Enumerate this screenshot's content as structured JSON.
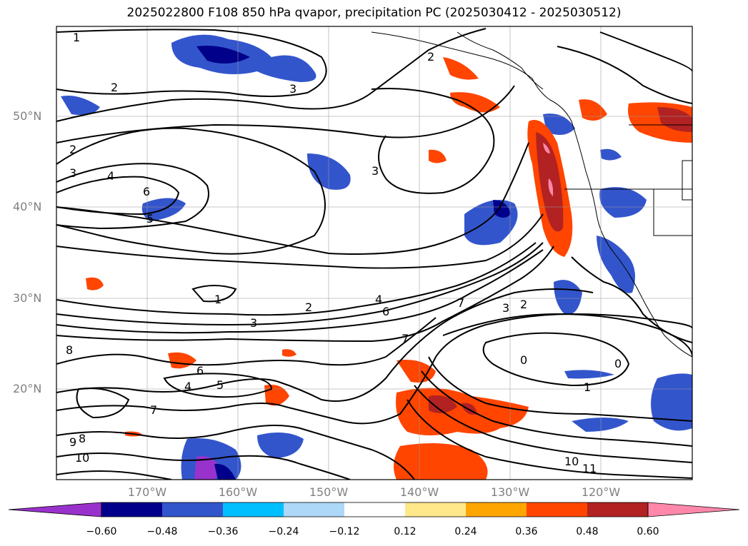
{
  "title": "2025022800 F108 850 hPa qvapor, precipitation PC (2025030412 - 2025030512)",
  "lat_labels": [
    "50°N",
    "40°N",
    "30°N",
    "20°N"
  ],
  "lon_labels": [
    "170°W",
    "160°W",
    "150°W",
    "140°W",
    "130°W",
    "120°W"
  ],
  "colorbar": {
    "ticks": [
      "−0.60",
      "−0.48",
      "−0.36",
      "−0.24",
      "−0.12",
      "0.12",
      "0.24",
      "0.36",
      "0.48",
      "0.60"
    ],
    "colors": [
      "#9932cc",
      "#00008b",
      "#3355cc",
      "#00bfff",
      "#add8f8",
      "#ffffff",
      "#ffe88a",
      "#ffa500",
      "#ff4500",
      "#b22222",
      "#ff88aa"
    ]
  },
  "contour_labels": [
    "1",
    "2",
    "3",
    "4",
    "6",
    "5",
    "2",
    "3",
    "1",
    "2",
    "3",
    "4",
    "6",
    "7",
    "3",
    "2",
    "8",
    "6",
    "4",
    "5",
    "7",
    "0",
    "0",
    "1",
    "8",
    "9",
    "10",
    "10",
    "11",
    "2",
    "3",
    "7"
  ]
}
